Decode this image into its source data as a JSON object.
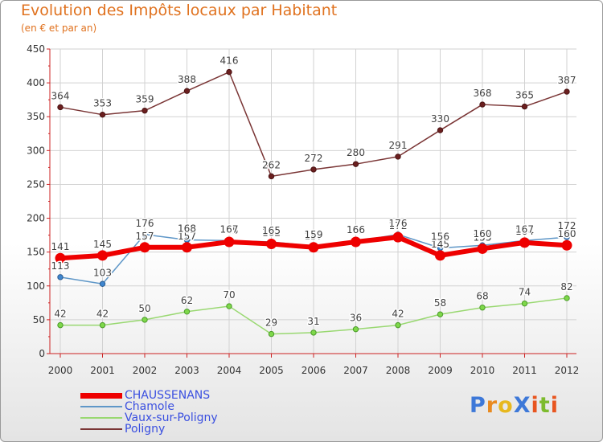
{
  "chart_data": {
    "type": "line",
    "title": "Evolution des Impôts locaux par Habitant",
    "subtitle": "(en € et par an)",
    "xlabel": "",
    "ylabel": "",
    "ylim": [
      0,
      450
    ],
    "yticks": [
      0,
      50,
      100,
      150,
      200,
      250,
      300,
      350,
      400,
      450
    ],
    "grid": true,
    "legend_position": "bottom-left",
    "categories": [
      "2000",
      "2001",
      "2002",
      "2003",
      "2004",
      "2005",
      "2006",
      "2007",
      "2008",
      "2009",
      "2010",
      "2011",
      "2012"
    ],
    "series": [
      {
        "name": "CHAUSSENANS",
        "color": "#ee0000",
        "values": [
          141,
          145,
          157,
          157,
          165,
          162,
          157,
          165,
          172,
          145,
          155,
          164,
          160
        ]
      },
      {
        "name": "Chamole",
        "color": "#5f97c8",
        "values": [
          113,
          103,
          176,
          168,
          167,
          165,
          159,
          166,
          176,
          156,
          160,
          167,
          172
        ]
      },
      {
        "name": "Vaux-sur-Poligny",
        "color": "#99d871",
        "values": [
          42,
          42,
          50,
          62,
          70,
          29,
          31,
          36,
          42,
          58,
          68,
          74,
          82
        ]
      },
      {
        "name": "Poligny",
        "color": "#7a3535",
        "values": [
          364,
          353,
          359,
          388,
          416,
          262,
          272,
          280,
          291,
          330,
          368,
          365,
          387
        ]
      }
    ]
  },
  "logo": {
    "text": "ProXiti"
  }
}
